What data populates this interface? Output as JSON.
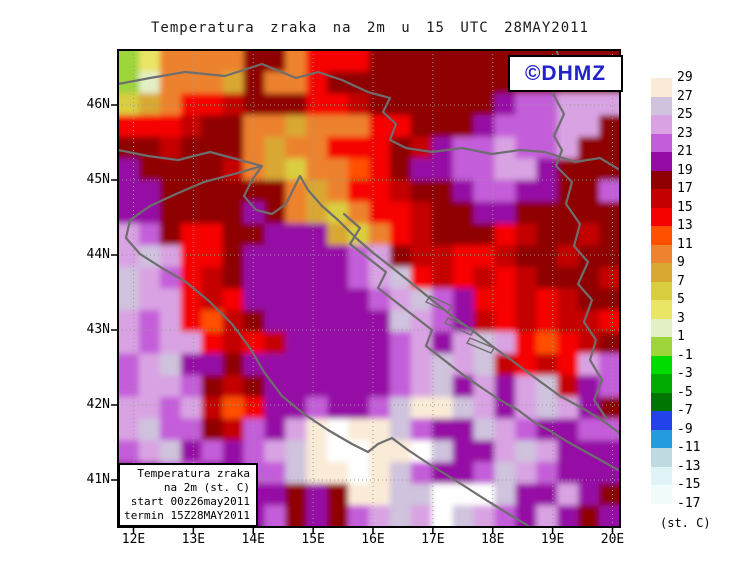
{
  "title": "Temperatura zraka na 2m u 15 UTC 28MAY2011",
  "logo": {
    "text": "©DHMZ",
    "color": "#2222cc"
  },
  "map": {
    "x_axis": {
      "labels": [
        "12E",
        "13E",
        "14E",
        "15E",
        "16E",
        "17E",
        "18E",
        "19E",
        "20E"
      ]
    },
    "y_axis": {
      "labels": [
        "46N",
        "45N",
        "44N",
        "43N",
        "42N",
        "41N"
      ]
    },
    "legend_box": {
      "lines": [
        "Temperatura zraka",
        "na 2m (st. C)",
        "start 00z26may2011",
        "termin 15Z28MAY2011"
      ]
    },
    "field": {
      "palette": {
        "g": "#9ED53B",
        "p": "#E3EFC5",
        "y": "#EBE566",
        "Y": "#D9CE3F",
        "G": "#D9A833",
        "N": "#ED822F",
        "S": "#FF5000",
        "R": "#F60000",
        "F": "#C40000",
        "M": "#8F0000",
        "D": "#950CA5",
        "O": "#C45DD9",
        "P": "#D9A3E3",
        "L": "#CFC3DD",
        "C": "#FAEBD7",
        "W": "#FFFFFF"
      },
      "rows": [
        "gyNNNNMMNRRRMMMMMMMMMMMM",
        "gpNNNGMNNRMMMMMMMMMMMMMM",
        "YGNRRFMMMRRFMMMMMMDOOPPP",
        "RRRFMMNNGNNNRRMMMDOOOPPM",
        "MMFMMMNGNNRRRMFDOOPOOPMM",
        "DMMMMFNGYNNSRMDDOOPPDMMM",
        "DDMMMMMMNGNRRFMMDOODDMMO",
        "DDMMMMDMNGYNRRFMMDDMMMMM",
        "POMRRMMDDDGYNRFMMMRFMMFM",
        "PLPRRMDDDDDOPMFFRRFMMFMM",
        "LPORFMDDDDDOPLRFRFRFMMMF",
        "LPPRFRDDDDDDOPLODRRFRFMM",
        "POPRSFMDDDDDDLPODFRFRFFR",
        "POPPRFRFDDDDDOPDPLPRSRFM",
        "OPLDDMDDDDDDDOPLPLFRFRPO",
        "OPPOMFMDDDDDDOPLDPDPLFDO",
        "PPOPFSRDDODDOLCCLPDPLPDM",
        "PLOOMFODPCWCCLODDLPODDOO",
        "OPLDODOPLCWWCCWLDDPLPDDD",
        "DDOODDOOLCCWCLODDOLPODDD",
        "DDDDDDDDMDMCCLLWWWLDDPDM",
        "DDDDDDDOMDMOPLPWLPODPDMD"
      ]
    },
    "borders": [
      "M118,84 L150,78 L185,72 L225,76 L262,64 L296,78 L318,72 L342,80 L368,92 L390,98 L383,112 L396,124 L390,140 L406,148 L432,152 L462,148 L492,154 L520,150 L545,152 L575,162 L600,158 L620,170",
      "M556,48 L562,70 L552,92 L564,114 L554,136 L562,150 L556,166 L572,182 L566,204 L580,224 L574,246 L588,262 L578,284 L592,300 L584,322 L596,340 L590,360 L602,380 L594,400 L606,418",
      "M118,150 L148,156 L178,160 L210,152 L240,160 L262,166 L252,180 L244,196 L256,210 L272,214 L286,204 L294,188 L300,176 L308,190 L322,206 L338,220 L356,238 L372,252 L390,266 L410,282 L432,300 L452,316 L472,330 L492,346 L514,362 L538,380 L560,396 L582,408 L602,420 L618,432 L621,436",
      "M262,166 L234,174 L204,182 L176,194 L150,206 L130,220 L126,238 L140,254 L162,268 L186,282 L210,302 L232,324 L250,348 L264,372 L282,396 L304,414 L328,430 L352,444 L368,452 L378,444 L392,438 L408,450 L432,466 L458,482 L486,500 L512,516 L530,527",
      "M344,214 L360,228 L350,244 L368,258 L386,272 L378,288 L396,302 L414,316 L432,330 L426,346 L444,360 L462,374 L482,388 L500,400 L518,410 L534,422 L552,432 L568,442 L586,452 L604,462 L618,470"
    ],
    "islands": [
      "M430,296 l22,10 l-4,6 l-22,-10 z",
      "M448,318 l26,12 l-3,5 l-26,-12 z",
      "M470,338 l24,10 l-3,5 l-24,-10 z"
    ]
  },
  "colorbar": {
    "labels": [
      "29",
      "27",
      "25",
      "23",
      "21",
      "19",
      "17",
      "15",
      "13",
      "11",
      "9",
      "7",
      "5",
      "3",
      "1",
      "-1",
      "-3",
      "-5",
      "-7",
      "-9",
      "-11",
      "-13",
      "-15",
      "-17"
    ],
    "colors": [
      "#FFFFFF",
      "#FAEBD7",
      "#CFC3DD",
      "#D9A3E3",
      "#C45DD9",
      "#950CA5",
      "#8F0000",
      "#C40000",
      "#F60000",
      "#FF5000",
      "#ED822F",
      "#D9A833",
      "#D9CE3F",
      "#EBE566",
      "#E3EFC5",
      "#9ED53B",
      "#00DC00",
      "#00AA00",
      "#007600",
      "#2342EA",
      "#259BDD",
      "#BFDAE0",
      "#E0F4F7",
      "#F2FBFC",
      "#FFFFFF"
    ],
    "unit": "(st. C)"
  }
}
